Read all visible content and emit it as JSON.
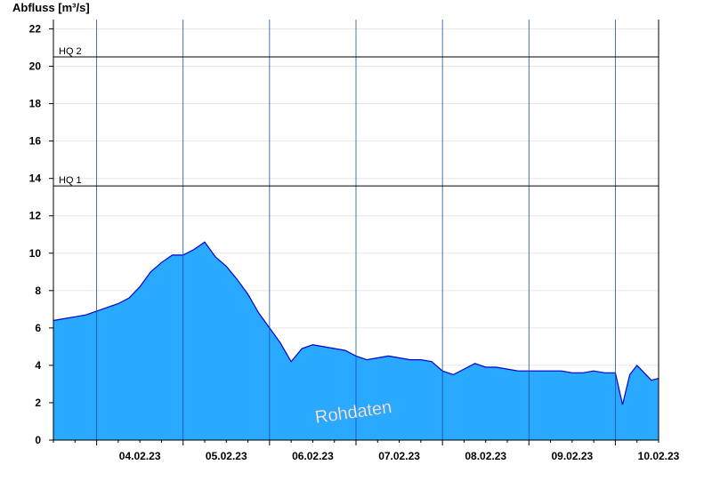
{
  "chart_data": {
    "type": "area",
    "ylabel": "Abfluss [m³/s]",
    "ylim": [
      0,
      22.5
    ],
    "yticks": [
      0,
      2,
      4,
      6,
      8,
      10,
      12,
      14,
      16,
      18,
      20,
      22
    ],
    "xlim": [
      "2023-02-03T12:00",
      "2023-02-10T12:00"
    ],
    "xtick_labels": [
      "04.02.23",
      "05.02.23",
      "06.02.23",
      "07.02.23",
      "08.02.23",
      "09.02.23",
      "10.02.23"
    ],
    "day_boundaries": [
      "2023-02-04",
      "2023-02-05",
      "2023-02-06",
      "2023-02-07",
      "2023-02-08",
      "2023-02-09",
      "2023-02-10"
    ],
    "grid": true,
    "reference_lines": [
      {
        "label": "HQ 1",
        "value": 13.6
      },
      {
        "label": "HQ 2",
        "value": 20.5
      }
    ],
    "watermark": "Rohdaten",
    "colors": {
      "fill": "#29a9ff",
      "line": "#0000cc",
      "grid": "#e6e6e6",
      "axis": "#000000"
    },
    "series": [
      {
        "x": [
          "2023-02-03T12:00",
          "2023-02-03T15:00",
          "2023-02-03T18:00",
          "2023-02-03T21:00",
          "2023-02-04T00:00",
          "2023-02-04T03:00",
          "2023-02-04T06:00",
          "2023-02-04T09:00",
          "2023-02-04T12:00",
          "2023-02-04T15:00",
          "2023-02-04T18:00",
          "2023-02-04T21:00",
          "2023-02-05T00:00",
          "2023-02-05T03:00",
          "2023-02-05T06:00",
          "2023-02-05T09:00",
          "2023-02-05T12:00",
          "2023-02-05T15:00",
          "2023-02-05T18:00",
          "2023-02-05T21:00",
          "2023-02-06T00:00",
          "2023-02-06T03:00",
          "2023-02-06T06:00",
          "2023-02-06T09:00",
          "2023-02-06T12:00",
          "2023-02-06T15:00",
          "2023-02-06T18:00",
          "2023-02-06T21:00",
          "2023-02-07T00:00",
          "2023-02-07T03:00",
          "2023-02-07T06:00",
          "2023-02-07T09:00",
          "2023-02-07T12:00",
          "2023-02-07T15:00",
          "2023-02-07T18:00",
          "2023-02-07T21:00",
          "2023-02-08T00:00",
          "2023-02-08T03:00",
          "2023-02-08T06:00",
          "2023-02-08T09:00",
          "2023-02-08T12:00",
          "2023-02-08T15:00",
          "2023-02-08T18:00",
          "2023-02-08T21:00",
          "2023-02-09T00:00",
          "2023-02-09T03:00",
          "2023-02-09T06:00",
          "2023-02-09T09:00",
          "2023-02-09T12:00",
          "2023-02-09T15:00",
          "2023-02-09T18:00",
          "2023-02-09T21:00",
          "2023-02-10T00:00",
          "2023-02-10T02:00",
          "2023-02-10T04:00",
          "2023-02-10T06:00",
          "2023-02-10T08:00",
          "2023-02-10T10:00",
          "2023-02-10T12:00"
        ],
        "values": [
          6.4,
          6.5,
          6.6,
          6.7,
          6.9,
          7.1,
          7.3,
          7.6,
          8.2,
          9.0,
          9.5,
          9.9,
          9.9,
          10.2,
          10.6,
          9.8,
          9.3,
          8.6,
          7.8,
          6.8,
          6.0,
          5.2,
          4.2,
          4.9,
          5.1,
          5.0,
          4.9,
          4.8,
          4.5,
          4.3,
          4.4,
          4.5,
          4.4,
          4.3,
          4.3,
          4.2,
          3.7,
          3.5,
          3.8,
          4.1,
          3.9,
          3.9,
          3.8,
          3.7,
          3.7,
          3.7,
          3.7,
          3.7,
          3.6,
          3.6,
          3.7,
          3.6,
          3.6,
          1.9,
          3.5,
          4.0,
          3.6,
          3.2,
          3.3
        ]
      }
    ]
  }
}
